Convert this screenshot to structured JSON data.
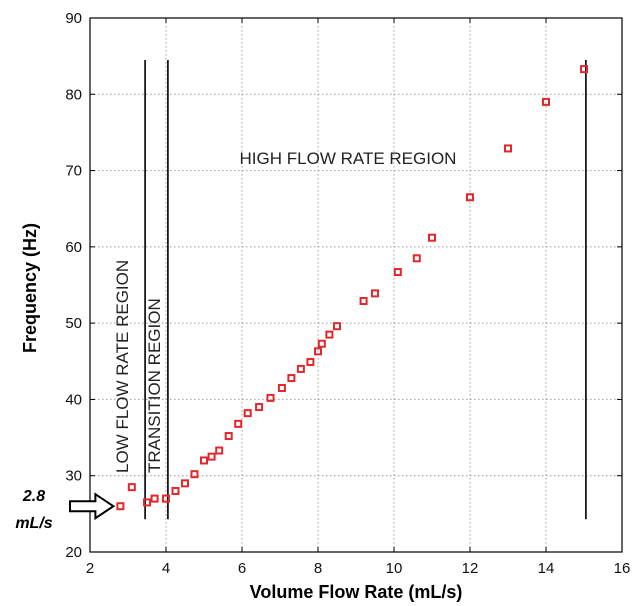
{
  "chart_data": {
    "type": "scatter",
    "title": "",
    "xlabel": "Volume Flow Rate (mL/s)",
    "ylabel": "Frequency (Hz)",
    "xlim": [
      2,
      16
    ],
    "ylim": [
      20,
      90
    ],
    "xticks": [
      2,
      4,
      6,
      8,
      10,
      12,
      14,
      16
    ],
    "yticks": [
      20,
      30,
      40,
      50,
      60,
      70,
      80,
      90
    ],
    "grid": true,
    "marker_color": "#e0282d",
    "series": [
      {
        "x": [
          2.8,
          3.1,
          3.5,
          3.7,
          4.0,
          4.25,
          4.5,
          4.75,
          5.0,
          5.2,
          5.4,
          5.65,
          5.9,
          6.15,
          6.45,
          6.75,
          7.05,
          7.3,
          7.55,
          7.8,
          8.0,
          8.1,
          8.3,
          8.5,
          9.2,
          9.5,
          10.1,
          10.6,
          11.0,
          12.0,
          13.0,
          14.0,
          15.0
        ],
        "y": [
          26.0,
          28.5,
          26.5,
          27.0,
          27.0,
          28.0,
          29.0,
          30.2,
          32.0,
          32.5,
          33.3,
          35.2,
          36.8,
          38.2,
          39.0,
          40.2,
          41.5,
          42.8,
          44.0,
          44.9,
          46.3,
          47.3,
          48.5,
          49.6,
          52.9,
          53.9,
          56.7,
          58.5,
          61.2,
          66.5,
          72.9,
          79.0,
          83.3
        ]
      }
    ],
    "vertical_lines": [
      3.45,
      4.05,
      15.05
    ],
    "annotations": {
      "low_region": "LOW FLOW RATE REGION",
      "transition_region": "TRANSITION REGION",
      "high_region": "HIGH FLOW RATE REGION",
      "callout_value": "2.8",
      "callout_unit": "mL/s",
      "callout_x": 2.8,
      "callout_y": 26.0
    }
  }
}
